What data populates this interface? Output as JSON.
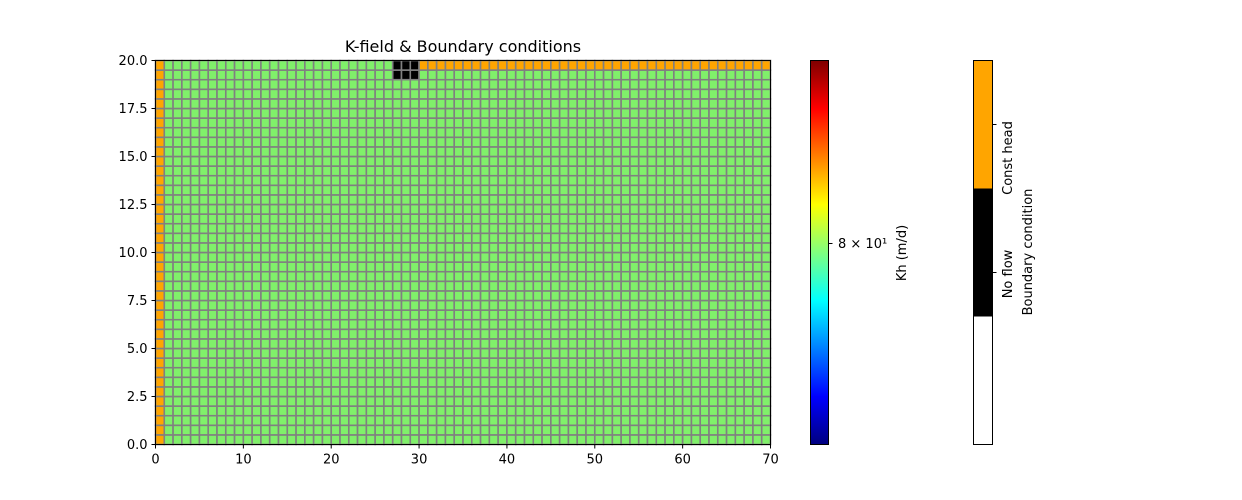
{
  "chart_data": {
    "type": "heatmap",
    "title": "K-field & Boundary conditions",
    "xlabel": "",
    "ylabel": "",
    "xlim": [
      0,
      70
    ],
    "ylim": [
      0,
      20
    ],
    "xticks": [
      "0",
      "10",
      "20",
      "30",
      "40",
      "50",
      "60",
      "70"
    ],
    "yticks": [
      "0.0",
      "2.5",
      "5.0",
      "7.5",
      "10.0",
      "12.5",
      "15.0",
      "17.5",
      "20.0"
    ],
    "grid": {
      "ncol": 70,
      "nrow": 40,
      "cell_width": 1.0,
      "cell_height": 0.5
    },
    "k_field": {
      "value": 80,
      "label": "Kh (m/d)",
      "tick_label": "8 × 10¹"
    },
    "boundary_conditions": {
      "label": "Boundary condition",
      "classes": [
        {
          "name": "",
          "color": "#ffffff"
        },
        {
          "name": "No flow",
          "color": "#000000"
        },
        {
          "name": "Const head",
          "color": "#ffa500"
        }
      ],
      "const_head": [
        {
          "where": "left column",
          "x": [
            0,
            1
          ],
          "y": [
            0,
            20
          ]
        },
        {
          "where": "top row",
          "x": [
            30,
            70
          ],
          "y": [
            19.5,
            20
          ]
        }
      ],
      "no_flow": [
        {
          "where": "top rows",
          "x": [
            27,
            30
          ],
          "y": [
            19,
            20
          ]
        }
      ]
    },
    "colors": {
      "cell_fill": "#80f06a",
      "cell_edge": "#808080",
      "const_head": "#ffa500",
      "no_flow": "#000000",
      "colormap": [
        "#00007f",
        "#0000ff",
        "#007fff",
        "#00ffff",
        "#7fff7f",
        "#ffff00",
        "#ff7f00",
        "#ff0000",
        "#7f0000"
      ]
    }
  }
}
